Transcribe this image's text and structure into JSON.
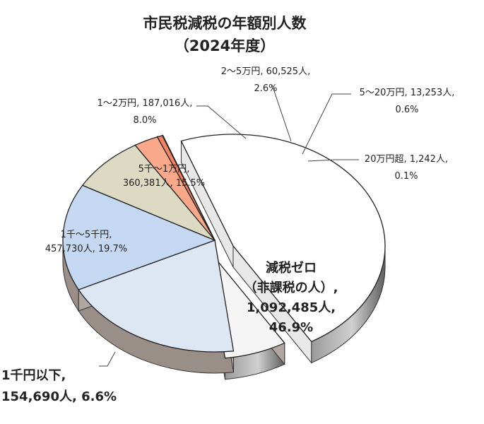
{
  "chart_data": {
    "type": "pie",
    "title": "市民税減税の年額別人数",
    "subtitle": "（2024年度）",
    "categories": [
      "減税ゼロ（非課税の人）",
      "1千円以下",
      "1千～5千円",
      "5千～1万円",
      "1～2万円",
      "2～5万円",
      "5～20万円",
      "20万円超"
    ],
    "values": [
      1092485,
      154690,
      457730,
      360381,
      187016,
      60525,
      13253,
      1242
    ],
    "percentages": [
      46.9,
      6.6,
      19.7,
      15.5,
      8.0,
      2.6,
      0.6,
      0.1
    ],
    "legend": "none"
  },
  "labels": [
    {
      "lines": [
        "減税ゼロ",
        "（非課税の人）,",
        "1,092,485人,",
        "46.9%"
      ],
      "style": "big"
    },
    {
      "lines": [
        "1千円以下,",
        "154,690人, 6.6%"
      ],
      "style": "big"
    },
    {
      "lines": [
        "1千～5千円,",
        "457,730人, 19.7%"
      ],
      "style": "small"
    },
    {
      "lines": [
        "5千～1万円,",
        "360,381人, 15.5%"
      ],
      "style": "small"
    },
    {
      "lines": [
        "1～2万円, 187,016人,",
        "8.0%"
      ],
      "style": "small"
    },
    {
      "lines": [
        "2～5万円, 60,525人,",
        "2.6%"
      ],
      "style": "small"
    },
    {
      "lines": [
        "5～20万円, 13,253人,",
        "0.6%"
      ],
      "style": "small"
    },
    {
      "lines": [
        "20万円超, 1,242人,",
        "0.1%"
      ],
      "style": "small"
    }
  ],
  "colors": [
    "#ffffff",
    "#f5f5f5",
    "#dde6f3",
    "#c5d8f1",
    "#dddac4",
    "#f9a98a",
    "#f48263",
    "#b97869"
  ]
}
